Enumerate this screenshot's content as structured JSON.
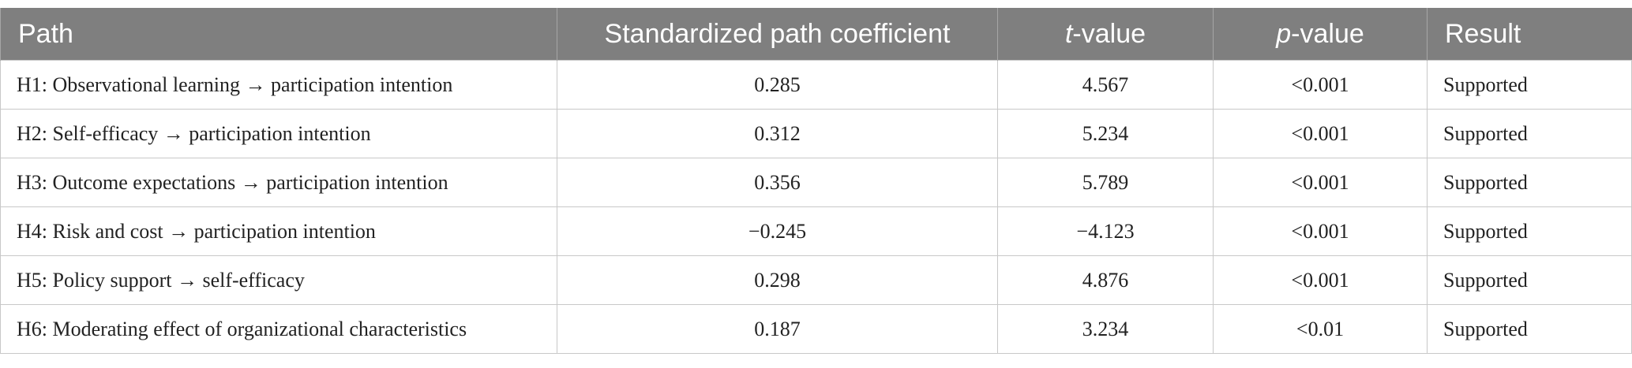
{
  "table": {
    "headers": [
      "Path",
      "Standardized path coefficient",
      [
        "t",
        "-value"
      ],
      [
        "p",
        "-value"
      ],
      "Result"
    ],
    "rows": [
      [
        "H1: Observational learning → participation intention",
        "0.285",
        "4.567",
        "<0.001",
        "Supported"
      ],
      [
        "H2: Self-efficacy → participation intention",
        "0.312",
        "5.234",
        "<0.001",
        "Supported"
      ],
      [
        "H3: Outcome expectations → participation intention",
        "0.356",
        "5.789",
        "<0.001",
        "Supported"
      ],
      [
        "H4: Risk and cost → participation intention",
        "−0.245",
        "−4.123",
        "<0.001",
        "Supported"
      ],
      [
        "H5: Policy support → self-efficacy",
        "0.298",
        "4.876",
        "<0.001",
        "Supported"
      ],
      [
        "H6: Moderating effect of organizational characteristics",
        "0.187",
        "3.234",
        "<0.01",
        "Supported"
      ]
    ]
  }
}
